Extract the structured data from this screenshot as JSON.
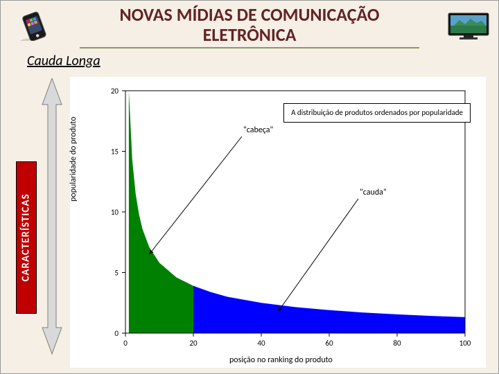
{
  "title_line1": "NOVAS MÍDIAS DE COMUNICAÇÃO",
  "title_line2": "ELETRÔNICA",
  "subtitle": "Cauda Longa",
  "side_label": "CARACTERÍSTICAS",
  "chart": {
    "type": "area",
    "xlabel": "posição no ranking do produto",
    "ylabel": "popularidade do produto",
    "xlim": [
      0,
      100
    ],
    "ylim": [
      0,
      20
    ],
    "xticks": [
      0,
      20,
      40,
      60,
      80,
      100
    ],
    "yticks": [
      0,
      5,
      10,
      15,
      20
    ],
    "head_color": "#008000",
    "tail_color": "#0000ff",
    "split_x": 20,
    "axis_color": "#000000",
    "background": "#ffffff",
    "legend": "A distribuição de produtos ordenados por popularidade",
    "annotations": {
      "head": "\"cabeça\"",
      "tail": "\"cauda\""
    },
    "curve": [
      {
        "x": 1,
        "y": 20
      },
      {
        "x": 2,
        "y": 14.3
      },
      {
        "x": 3,
        "y": 11.5
      },
      {
        "x": 4,
        "y": 9.8
      },
      {
        "x": 5,
        "y": 8.6
      },
      {
        "x": 7,
        "y": 7.1
      },
      {
        "x": 10,
        "y": 5.8
      },
      {
        "x": 15,
        "y": 4.6
      },
      {
        "x": 20,
        "y": 3.9
      },
      {
        "x": 25,
        "y": 3.4
      },
      {
        "x": 30,
        "y": 3.0
      },
      {
        "x": 40,
        "y": 2.5
      },
      {
        "x": 50,
        "y": 2.15
      },
      {
        "x": 60,
        "y": 1.9
      },
      {
        "x": 70,
        "y": 1.7
      },
      {
        "x": 80,
        "y": 1.55
      },
      {
        "x": 90,
        "y": 1.42
      },
      {
        "x": 100,
        "y": 1.32
      }
    ],
    "label_fontsize": 12,
    "tick_fontsize": 11
  },
  "colors": {
    "slide_bg": "#f5efe6",
    "title_color": "#632423",
    "underline_color": "#8a9a5b",
    "side_box_bg": "#c00000",
    "side_box_text": "#ffffff"
  }
}
